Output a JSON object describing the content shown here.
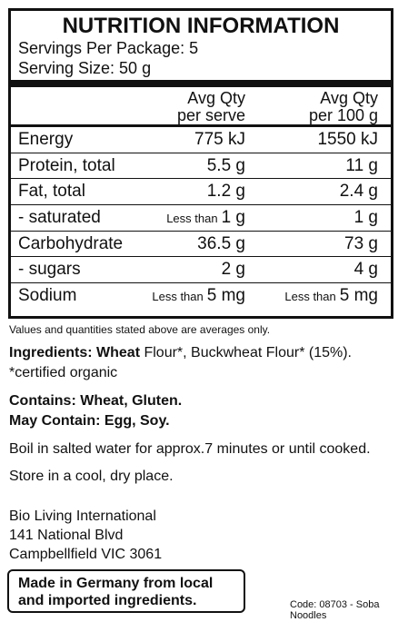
{
  "panel": {
    "title": "NUTRITION INFORMATION",
    "servings_per_package": "Servings Per Package: 5",
    "serving_size": "Serving Size: 50 g",
    "header": {
      "per_serve_line1": "Avg Qty",
      "per_serve_line2": "per serve",
      "per_100g_line1": "Avg Qty",
      "per_100g_line2": "per 100 g"
    },
    "rows": [
      {
        "name": "Energy",
        "serve_prefix": "",
        "serve": "775 kJ",
        "per100_prefix": "",
        "per100": "1550 kJ"
      },
      {
        "name": "Protein, total",
        "serve_prefix": "",
        "serve": "5.5 g",
        "per100_prefix": "",
        "per100": "11 g"
      },
      {
        "name": "Fat, total",
        "serve_prefix": "",
        "serve": "1.2 g",
        "per100_prefix": "",
        "per100": "2.4 g"
      },
      {
        "name": "- saturated",
        "serve_prefix": "Less than",
        "serve": "1 g",
        "per100_prefix": "",
        "per100": "1 g"
      },
      {
        "name": "Carbohydrate",
        "serve_prefix": "",
        "serve": "36.5 g",
        "per100_prefix": "",
        "per100": "73 g"
      },
      {
        "name": "- sugars",
        "serve_prefix": "",
        "serve": "2 g",
        "per100_prefix": "",
        "per100": "4 g"
      },
      {
        "name": "Sodium",
        "serve_prefix": "Less than",
        "serve": "5 mg",
        "per100_prefix": "Less than",
        "per100": "5 mg"
      }
    ]
  },
  "averages_note": "Values and quantities stated above are averages only.",
  "ingredients": {
    "label": "Ingredients:",
    "wheat": "Wheat",
    "rest": " Flour*, Buckwheat Flour* (15%).",
    "organic_note": "*certified organic"
  },
  "allergens": {
    "contains": "Contains: Wheat, Gluten.",
    "may_contain": "May Contain: Egg, Soy."
  },
  "instructions": "Boil in salted water for approx.7 minutes or until cooked.",
  "storage": "Store in a cool, dry place.",
  "address": {
    "line1": "Bio Living International",
    "line2": "141 National Blvd",
    "line3": "Campbellfield VIC 3061"
  },
  "origin": {
    "line1": "Made in Germany from local",
    "line2": "and imported ingredients."
  },
  "code": "Code: 08703 - Soba Noodles"
}
